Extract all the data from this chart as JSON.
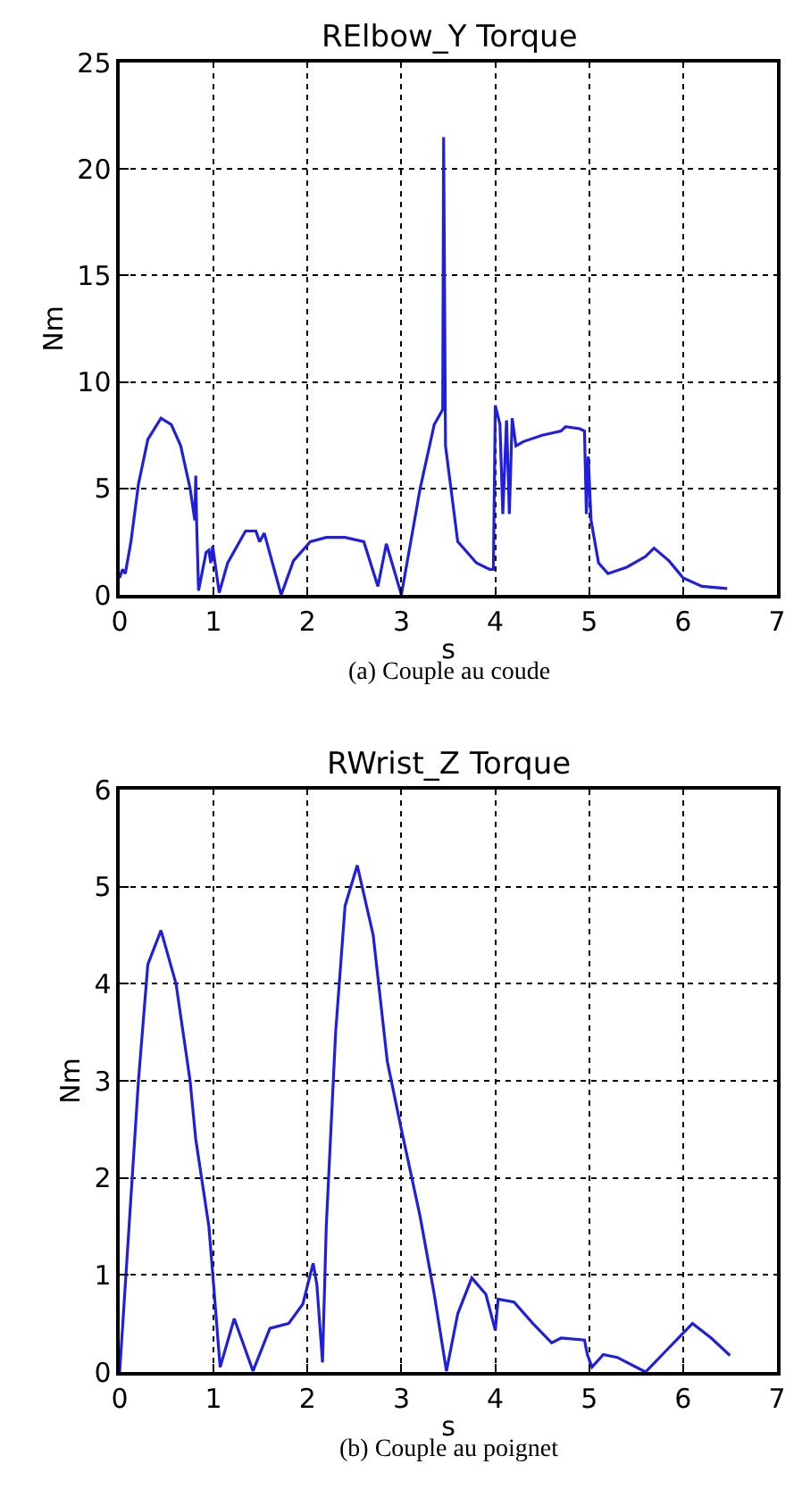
{
  "chart_data": [
    {
      "type": "line",
      "title": "RElbow_Y Torque",
      "xlabel": "s",
      "ylabel": "Nm",
      "annotations": [
        "(a) Couple au coude"
      ],
      "xlim": [
        0,
        7
      ],
      "xticks": [
        0,
        1,
        2,
        3,
        4,
        5,
        6,
        7
      ],
      "ylim": [
        0,
        25
      ],
      "yticks": [
        0,
        5,
        10,
        15,
        20,
        25
      ],
      "grid": true,
      "series": [
        {
          "color": "#1f1fdc",
          "x": [
            0,
            0.03,
            0.06,
            0.12,
            0.2,
            0.3,
            0.44,
            0.55,
            0.65,
            0.75,
            0.8,
            0.81,
            0.82,
            0.84,
            0.92,
            0.95,
            0.97,
            0.99,
            1.06,
            1.15,
            1.34,
            1.45,
            1.49,
            1.54,
            1.72,
            1.85,
            2.03,
            2.2,
            2.4,
            2.6,
            2.75,
            2.84,
            3.0,
            3.2,
            3.35,
            3.44,
            3.45,
            3.47,
            3.6,
            3.8,
            3.94,
            3.98,
            4.0,
            4.05,
            4.08,
            4.12,
            4.15,
            4.18,
            4.22,
            4.3,
            4.5,
            4.7,
            4.75,
            4.9,
            4.95,
            4.97,
            4.99,
            5.02,
            5.1,
            5.2,
            5.4,
            5.6,
            5.69,
            5.85,
            6.0,
            6.2,
            6.47
          ],
          "values": [
            0.8,
            1.2,
            1.0,
            2.5,
            5.2,
            7.3,
            8.3,
            8.0,
            7.0,
            5.0,
            3.5,
            5.6,
            3.3,
            0.2,
            2.0,
            2.1,
            1.5,
            2.3,
            0.1,
            1.5,
            3.0,
            3.0,
            2.5,
            2.9,
            0.0,
            1.6,
            2.5,
            2.7,
            2.7,
            2.5,
            0.4,
            2.4,
            0.0,
            5.0,
            8.0,
            8.7,
            21.5,
            7.0,
            2.5,
            1.5,
            1.2,
            1.2,
            8.9,
            8.0,
            3.8,
            8.2,
            3.8,
            8.3,
            7.0,
            7.2,
            7.5,
            7.7,
            7.9,
            7.8,
            7.7,
            3.8,
            6.5,
            3.5,
            1.5,
            1.0,
            1.3,
            1.8,
            2.2,
            1.6,
            0.8,
            0.4,
            0.3
          ]
        }
      ]
    },
    {
      "type": "line",
      "title": "RWrist_Z Torque",
      "xlabel": "s",
      "ylabel": "Nm",
      "annotations": [
        "(b) Couple au poignet"
      ],
      "xlim": [
        0,
        7
      ],
      "xticks": [
        0,
        1,
        2,
        3,
        4,
        5,
        6,
        7
      ],
      "ylim": [
        0,
        6
      ],
      "yticks": [
        0,
        1,
        2,
        3,
        4,
        5,
        6
      ],
      "grid": true,
      "series": [
        {
          "color": "#1f1fdc",
          "x": [
            0,
            0.1,
            0.2,
            0.3,
            0.44,
            0.6,
            0.75,
            0.81,
            0.95,
            1.0,
            1.07,
            1.22,
            1.42,
            1.6,
            1.8,
            1.95,
            2.06,
            2.1,
            2.16,
            2.2,
            2.3,
            2.4,
            2.53,
            2.7,
            2.85,
            3.0,
            3.2,
            3.35,
            3.48,
            3.6,
            3.75,
            3.9,
            4.0,
            4.03,
            4.2,
            4.4,
            4.6,
            4.7,
            4.95,
            4.98,
            5.03,
            5.15,
            5.3,
            5.6,
            5.8,
            6.1,
            6.3,
            6.5
          ],
          "values": [
            0.0,
            1.5,
            3.0,
            4.2,
            4.55,
            4.0,
            3.0,
            2.4,
            1.5,
            0.9,
            0.05,
            0.55,
            0.01,
            0.45,
            0.5,
            0.7,
            1.12,
            0.9,
            0.1,
            1.5,
            3.5,
            4.8,
            5.22,
            4.5,
            3.2,
            2.5,
            1.6,
            0.8,
            0.01,
            0.6,
            0.97,
            0.8,
            0.43,
            0.75,
            0.72,
            0.5,
            0.3,
            0.35,
            0.33,
            0.18,
            0.05,
            0.18,
            0.15,
            0.0,
            0.2,
            0.5,
            0.35,
            0.17
          ]
        }
      ]
    }
  ]
}
